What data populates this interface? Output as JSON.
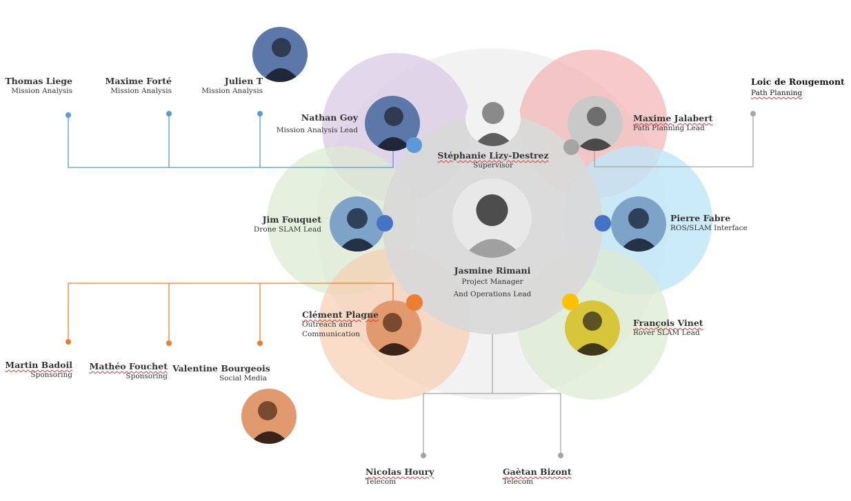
{
  "colors": {
    "purple": "#d9c9e6",
    "pink": "#f3b4b4",
    "blue_light": "#bfe6f7",
    "green_light": "#dcebd2",
    "orange_light": "#f6cfb0",
    "grey_center": "#d9d9d9",
    "grey_outer": "#ececec",
    "dot_blue_small": "#5b9bd5",
    "dot_blue_big": "#4472c4",
    "dot_orange": "#ed7d31",
    "dot_grey": "#a5a5a5",
    "dot_yellow": "#ffc000",
    "line_blue": "#5b9bd5",
    "line_orange": "#ed7d31",
    "line_grey": "#a5a5a5"
  },
  "people": {
    "thomas": {
      "name": "Thomas Liege",
      "role": "Mission Analysis"
    },
    "maxime_f": {
      "name": "Maxime Forté",
      "role": "Mission Analysis"
    },
    "julien": {
      "name": "Julien T",
      "role": "Mission Analysis"
    },
    "nathan": {
      "name": "Nathan Goy",
      "role": "Mission Analysis Lead"
    },
    "stephanie": {
      "name": "Stéphanie Lizy-Destrez",
      "role": "Supervisor"
    },
    "maxime_j": {
      "name": "Maxime Jalabert",
      "role": "Path Planning Lead"
    },
    "loic": {
      "name": "Loic de Rougemont",
      "role": "Path Planning"
    },
    "jim": {
      "name": "Jim Fouquet",
      "role": "Drone SLAM Lead"
    },
    "jasmine": {
      "name": "Jasmine Rimani",
      "role": "Project Manager",
      "role2": "And Operations Lead"
    },
    "pierre": {
      "name": "Pierre Fabre",
      "role": "ROS/SLAM Interface"
    },
    "clement": {
      "name": "Clément Plagne",
      "role": "Outreach and",
      "role2": "Communication"
    },
    "francois": {
      "name": "François Vinet",
      "role": "Rover SLAM Lead"
    },
    "martin": {
      "name": "Martin Badoil",
      "role": "Sponsoring"
    },
    "matheo": {
      "name": "Mathéo Fouchet",
      "role": "Sponsoring"
    },
    "valentine": {
      "name": "Valentine Bourgeois",
      "role": "Social Media"
    },
    "nicolas": {
      "name": "Nicolas Houry",
      "role": "Telecom"
    },
    "gaetan": {
      "name": "Gaètan Bizont",
      "role": "Telecom"
    }
  }
}
